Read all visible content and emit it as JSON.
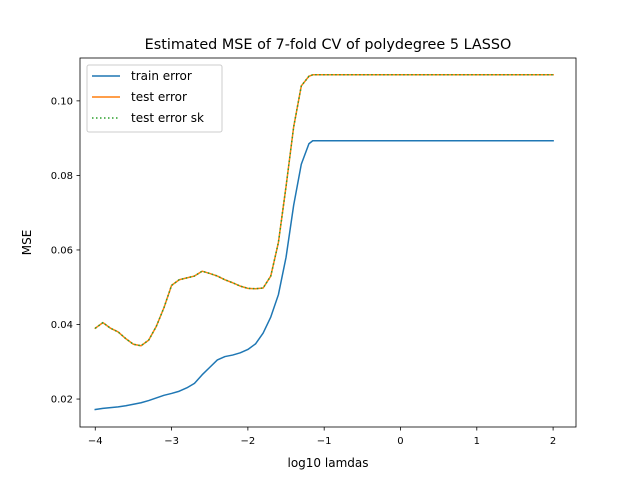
{
  "chart_data": {
    "type": "line",
    "title": "Estimated MSE of 7-fold CV of polydegree 5 LASSO",
    "xlabel": "log10 lamdas",
    "ylabel": "MSE",
    "xlim": [
      -4.2,
      2.3
    ],
    "ylim": [
      0.0125,
      0.1115
    ],
    "xticks": [
      -4,
      -3,
      -2,
      -1,
      0,
      1,
      2
    ],
    "xtick_labels": [
      "−4",
      "−3",
      "−2",
      "−1",
      "0",
      "1",
      "2"
    ],
    "yticks": [
      0.02,
      0.04,
      0.06,
      0.08,
      0.1
    ],
    "ytick_labels": [
      "0.02",
      "0.04",
      "0.06",
      "0.08",
      "0.10"
    ],
    "grid": false,
    "legend_position": "upper left",
    "x": [
      -4.0,
      -3.9,
      -3.8,
      -3.7,
      -3.6,
      -3.5,
      -3.4,
      -3.3,
      -3.2,
      -3.1,
      -3.0,
      -2.9,
      -2.8,
      -2.7,
      -2.6,
      -2.5,
      -2.4,
      -2.3,
      -2.2,
      -2.1,
      -2.0,
      -1.9,
      -1.8,
      -1.7,
      -1.6,
      -1.5,
      -1.4,
      -1.3,
      -1.2,
      -1.15,
      -1.1,
      -1.0,
      -0.9,
      -0.8,
      -0.7,
      -0.6,
      -0.5,
      -0.4,
      -0.3,
      -0.2,
      -0.1,
      0.0,
      0.1,
      0.2,
      0.3,
      0.4,
      0.5,
      0.6,
      0.7,
      0.8,
      0.9,
      1.0,
      1.1,
      1.2,
      1.3,
      1.4,
      1.5,
      1.6,
      1.7,
      1.8,
      1.9,
      2.0
    ],
    "series": [
      {
        "name": "train error",
        "color": "#1f77b4",
        "style": "solid",
        "values": [
          0.0172,
          0.0175,
          0.0177,
          0.0179,
          0.0182,
          0.0186,
          0.019,
          0.0196,
          0.0203,
          0.021,
          0.0215,
          0.0221,
          0.023,
          0.0242,
          0.0265,
          0.0285,
          0.0305,
          0.0314,
          0.0318,
          0.0324,
          0.0333,
          0.0348,
          0.0377,
          0.042,
          0.048,
          0.058,
          0.072,
          0.083,
          0.0885,
          0.0893,
          0.0893,
          0.0893,
          0.0893,
          0.0893,
          0.0893,
          0.0893,
          0.0893,
          0.0893,
          0.0893,
          0.0893,
          0.0893,
          0.0893,
          0.0893,
          0.0893,
          0.0893,
          0.0893,
          0.0893,
          0.0893,
          0.0893,
          0.0893,
          0.0893,
          0.0893,
          0.0893,
          0.0893,
          0.0893,
          0.0893,
          0.0893,
          0.0893,
          0.0893,
          0.0893,
          0.0893,
          0.0893
        ]
      },
      {
        "name": "test error",
        "color": "#ff7f0e",
        "style": "solid",
        "values": [
          0.039,
          0.0405,
          0.039,
          0.038,
          0.0362,
          0.0347,
          0.0343,
          0.0358,
          0.0395,
          0.0445,
          0.0505,
          0.052,
          0.0525,
          0.053,
          0.0543,
          0.0537,
          0.053,
          0.052,
          0.0512,
          0.0503,
          0.0497,
          0.0496,
          0.0498,
          0.053,
          0.062,
          0.077,
          0.093,
          0.104,
          0.1066,
          0.107,
          0.107,
          0.107,
          0.107,
          0.107,
          0.107,
          0.107,
          0.107,
          0.107,
          0.107,
          0.107,
          0.107,
          0.107,
          0.107,
          0.107,
          0.107,
          0.107,
          0.107,
          0.107,
          0.107,
          0.107,
          0.107,
          0.107,
          0.107,
          0.107,
          0.107,
          0.107,
          0.107,
          0.107,
          0.107,
          0.107,
          0.107,
          0.107
        ]
      },
      {
        "name": "test error sk",
        "color": "#2ca02c",
        "style": "dotted",
        "values": [
          0.039,
          0.0405,
          0.039,
          0.038,
          0.0362,
          0.0347,
          0.0343,
          0.0358,
          0.0395,
          0.0445,
          0.0505,
          0.052,
          0.0525,
          0.053,
          0.0543,
          0.0537,
          0.053,
          0.052,
          0.0512,
          0.0503,
          0.0497,
          0.0496,
          0.0498,
          0.053,
          0.062,
          0.077,
          0.093,
          0.104,
          0.1066,
          0.107,
          0.107,
          0.107,
          0.107,
          0.107,
          0.107,
          0.107,
          0.107,
          0.107,
          0.107,
          0.107,
          0.107,
          0.107,
          0.107,
          0.107,
          0.107,
          0.107,
          0.107,
          0.107,
          0.107,
          0.107,
          0.107,
          0.107,
          0.107,
          0.107,
          0.107,
          0.107,
          0.107,
          0.107,
          0.107,
          0.107,
          0.107,
          0.107
        ]
      }
    ]
  }
}
